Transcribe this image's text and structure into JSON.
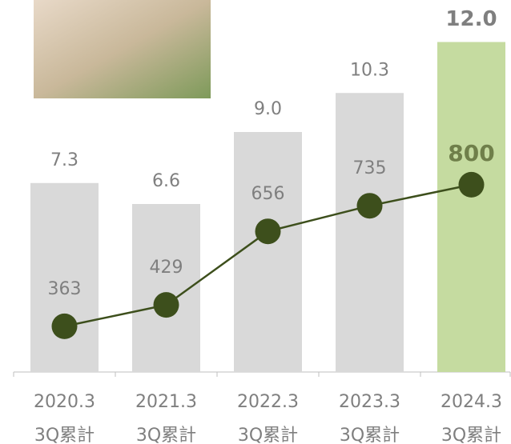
{
  "chart_data": {
    "type": "bar",
    "categories": [
      [
        "2020.3",
        "3Q累計"
      ],
      [
        "2021.3",
        "3Q累計"
      ],
      [
        "2022.3",
        "3Q累計"
      ],
      [
        "2023.3",
        "3Q累計"
      ],
      [
        "2024.3",
        "3Q累計"
      ]
    ],
    "series": [
      {
        "type": "bar",
        "values": [
          7.3,
          6.6,
          9.0,
          10.3,
          12.0
        ],
        "value_labels": [
          "7.3",
          "6.6",
          "9.0",
          "10.3",
          "12.0"
        ],
        "colors": [
          "#d9d9d9",
          "#d9d9d9",
          "#d9d9d9",
          "#d9d9d9",
          "#c5dba0"
        ]
      },
      {
        "type": "line",
        "axis": "y2",
        "values": [
          363,
          429,
          656,
          735,
          800
        ],
        "color": "#3d4f1c"
      }
    ],
    "ylim": [
      1,
      13.4
    ],
    "y2lim": [
      222,
      1370
    ],
    "highlight_last": true
  }
}
